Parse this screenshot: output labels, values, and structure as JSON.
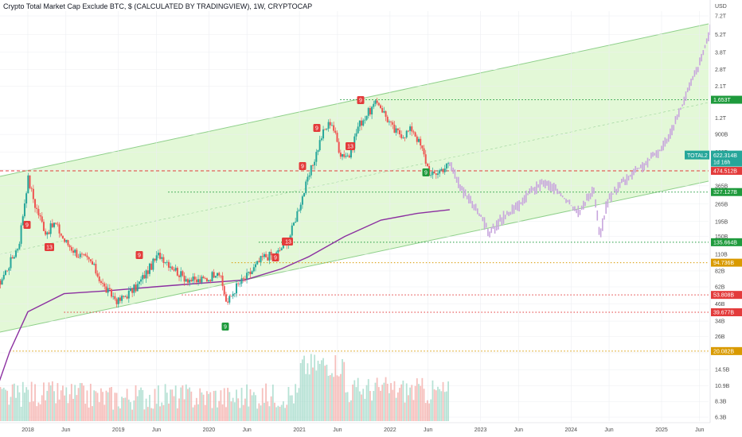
{
  "title": "Crypto Total Market Cap Exclude BTC, $ (CALCULATED BY TRADINGVIEW), 1W, CRYPTOCAP",
  "chart_data": {
    "type": "candlestick",
    "currency_label": "USD",
    "y_scale": "log",
    "y_ticks": [
      "7.2T",
      "5.2T",
      "3.8T",
      "2.8T",
      "2.1T",
      "1.2T",
      "900B",
      "660B",
      "485B",
      "365B",
      "265B",
      "195B",
      "150B",
      "110B",
      "82B",
      "62B",
      "46B",
      "34B",
      "26B",
      "19.5B",
      "14.5B",
      "10.9B",
      "8.3B",
      "6.3B"
    ],
    "x_ticks": [
      "2018",
      "Jun",
      "2019",
      "Jun",
      "2020",
      "Jun",
      "2021",
      "Jun",
      "2022",
      "Jun",
      "2023",
      "Jun",
      "2024",
      "Jun",
      "2025",
      "Jun"
    ],
    "symbol_badge": {
      "label": "TOTAL2",
      "value": "622.314B",
      "countdown": "1d 16h"
    },
    "price_levels": [
      {
        "value": "1.653T",
        "color": "#1e9a3c",
        "style": "dotted"
      },
      {
        "value": "474.512B",
        "color": "#e33b3b",
        "style": "dashed"
      },
      {
        "value": "327.127B",
        "color": "#1e9a3c",
        "style": "dotted"
      },
      {
        "value": "135.664B",
        "color": "#1e9a3c",
        "style": "dotted"
      },
      {
        "value": "94.736B",
        "color": "#d99a00",
        "style": "dotted"
      },
      {
        "value": "53.808B",
        "color": "#e33b3b",
        "style": "dotted"
      },
      {
        "value": "39.677B",
        "color": "#e33b3b",
        "style": "dotted"
      },
      {
        "value": "20.082B",
        "color": "#d99a00",
        "style": "dotted"
      }
    ],
    "projection_color": "#c8a6dd",
    "moving_average_color": "#8b2fa0",
    "candle_up_color": "#26a69a",
    "candle_down_color": "#ef5350",
    "channel_fill_color": "#d9f5c9",
    "td_badges": [
      {
        "label": "9",
        "color": "#e33b3b"
      },
      {
        "label": "13",
        "color": "#e33b3b"
      },
      {
        "label": "9",
        "color": "#e33b3b"
      },
      {
        "label": "13",
        "color": "#e33b3b"
      },
      {
        "label": "9",
        "color": "#e33b3b"
      },
      {
        "label": "9",
        "color": "#e33b3b"
      },
      {
        "label": "13",
        "color": "#e33b3b"
      },
      {
        "label": "9",
        "color": "#e33b3b"
      },
      {
        "label": "13",
        "color": "#e33b3b"
      },
      {
        "label": "9",
        "color": "#e33b3b"
      },
      {
        "label": "9",
        "color": "#1e9a3c"
      },
      {
        "label": "9",
        "color": "#1e9a3c"
      }
    ]
  }
}
